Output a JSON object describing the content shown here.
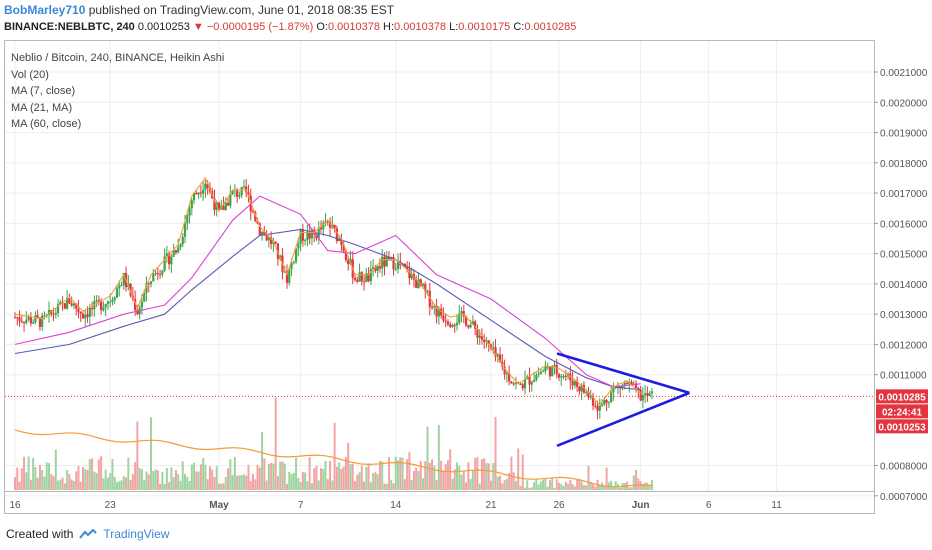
{
  "header": {
    "author": "BobMarley710",
    "published_text": "published on TradingView.com, June 01, 2018 08:35 EST"
  },
  "quote": {
    "symbol": "BINANCE:NEBLBTC, 240",
    "last": "0.0010253",
    "arrow": "▼",
    "change": "−0.0000195 (−1.87%)",
    "o_label": "O:",
    "o": "0.0010378",
    "h_label": "H:",
    "h": "0.0010378",
    "l_label": "L:",
    "l": "0.0010175",
    "c_label": "C:",
    "c": "0.0010285"
  },
  "legend": [
    "Neblio / Bitcoin, 240, BINANCE, Heikin Ashi",
    "Vol (20)",
    "MA (7, close)",
    "MA (21, MA)",
    "MA (60, close)"
  ],
  "price_tags": {
    "current": "0.0010285",
    "countdown": "02:24:41",
    "last": "0.0010253"
  },
  "footer": {
    "created_with": "Created with",
    "brand": "TradingView"
  },
  "colors": {
    "up": "#3aa54a",
    "down": "#e3343f",
    "ma7": "#f39c3b",
    "ma21": "#e040d0",
    "ma60": "#5a5ab4",
    "triangle": "#1c1ce0",
    "price_line": "#e3343f",
    "vol_up": "#9fd3a0",
    "vol_down": "#f2a3a3",
    "vol_ma": "#f39c3b"
  },
  "chart_data": {
    "type": "candlestick",
    "chart_style": "Heikin Ashi",
    "interval": "240",
    "y_axis": {
      "position": "right",
      "ticks": [
        "0.0021000",
        "0.0020000",
        "0.0019000",
        "0.0018000",
        "0.0017000",
        "0.0016000",
        "0.0015000",
        "0.0014000",
        "0.0013000",
        "0.0012000",
        "0.0011000",
        "0.0008000",
        "0.0007000"
      ],
      "tick_values": [
        0.0021,
        0.002,
        0.0019,
        0.0018,
        0.0017,
        0.0016,
        0.0015,
        0.0014,
        0.0013,
        0.0012,
        0.0011,
        0.0008,
        0.0007
      ]
    },
    "x_axis": {
      "ticks": [
        "16",
        "23",
        "May",
        "7",
        "14",
        "21",
        "26",
        "Jun",
        "6",
        "11"
      ]
    },
    "price_path": [
      {
        "x": "Apr 16",
        "close": 0.00129
      },
      {
        "x": "Apr 18",
        "close": 0.001275
      },
      {
        "x": "Apr 20",
        "close": 0.001345
      },
      {
        "x": "Apr 21",
        "close": 0.0013
      },
      {
        "x": "Apr 23",
        "close": 0.00135
      },
      {
        "x": "Apr 24",
        "close": 0.00142
      },
      {
        "x": "Apr 25",
        "close": 0.00131
      },
      {
        "x": "Apr 26",
        "close": 0.00142
      },
      {
        "x": "Apr 28",
        "close": 0.00152
      },
      {
        "x": "Apr 29",
        "close": 0.00168
      },
      {
        "x": "Apr 30",
        "close": 0.00174
      },
      {
        "x": "May 1",
        "close": 0.00163
      },
      {
        "x": "May 2",
        "close": 0.0017
      },
      {
        "x": "May 3",
        "close": 0.0017
      },
      {
        "x": "May 4",
        "close": 0.00158
      },
      {
        "x": "May 5",
        "close": 0.00153
      },
      {
        "x": "May 6",
        "close": 0.00142
      },
      {
        "x": "May 7",
        "close": 0.00156
      },
      {
        "x": "May 8",
        "close": 0.00156
      },
      {
        "x": "May 9",
        "close": 0.0016
      },
      {
        "x": "May 10",
        "close": 0.00154
      },
      {
        "x": "May 11",
        "close": 0.00142
      },
      {
        "x": "May 12",
        "close": 0.00142
      },
      {
        "x": "May 13",
        "close": 0.00147
      },
      {
        "x": "May 14",
        "close": 0.00147
      },
      {
        "x": "May 15",
        "close": 0.00143
      },
      {
        "x": "May 16",
        "close": 0.00138
      },
      {
        "x": "May 17",
        "close": 0.00131
      },
      {
        "x": "May 18",
        "close": 0.00128
      },
      {
        "x": "May 19",
        "close": 0.00129
      },
      {
        "x": "May 20",
        "close": 0.00124
      },
      {
        "x": "May 21",
        "close": 0.00118
      },
      {
        "x": "May 22",
        "close": 0.00111
      },
      {
        "x": "May 23",
        "close": 0.00106
      },
      {
        "x": "May 24",
        "close": 0.00109
      },
      {
        "x": "May 25",
        "close": 0.00112
      },
      {
        "x": "May 26",
        "close": 0.00111
      },
      {
        "x": "May 27",
        "close": 0.00108
      },
      {
        "x": "May 28",
        "close": 0.00104
      },
      {
        "x": "May 29",
        "close": 0.00099
      },
      {
        "x": "May 30",
        "close": 0.00105
      },
      {
        "x": "May 31",
        "close": 0.00107
      },
      {
        "x": "Jun 1",
        "close": 0.0010285
      }
    ],
    "ma_21": [
      0.0012,
      0.00124,
      0.0013,
      0.00133,
      0.00142,
      0.00161,
      0.00169,
      0.00163,
      0.00151,
      0.0015,
      0.00156,
      0.00143,
      0.00135,
      0.00122,
      0.0011,
      0.00106,
      0.00107
    ],
    "ma_60": [
      0.00117,
      0.0012,
      0.00126,
      0.0013,
      0.00138,
      0.00149,
      0.00156,
      0.00158,
      0.00156,
      0.00153,
      0.00148,
      0.0014,
      0.00128,
      0.00116,
      0.00109,
      0.00106,
      0.00105
    ],
    "ma_dates": [
      "Apr 16",
      "Apr 20",
      "Apr 24",
      "Apr 27",
      "Apr 29",
      "May 2",
      "May 4",
      "May 7",
      "May 9",
      "May 11",
      "May 14",
      "May 17",
      "May 21",
      "May 25",
      "May 28",
      "May 30",
      "Jun 1"
    ],
    "volume_ma": "declining from left to right",
    "last_price": 0.0010285,
    "drawings": [
      {
        "type": "symmetrical-triangle",
        "upper_line": [
          {
            "x": "May 26",
            "price": 0.00117
          },
          {
            "x": "Jun 4",
            "price": 0.00104
          }
        ],
        "lower_line": [
          {
            "x": "May 26",
            "price": 0.000865
          },
          {
            "x": "Jun 4",
            "price": 0.00104
          }
        ]
      }
    ]
  }
}
